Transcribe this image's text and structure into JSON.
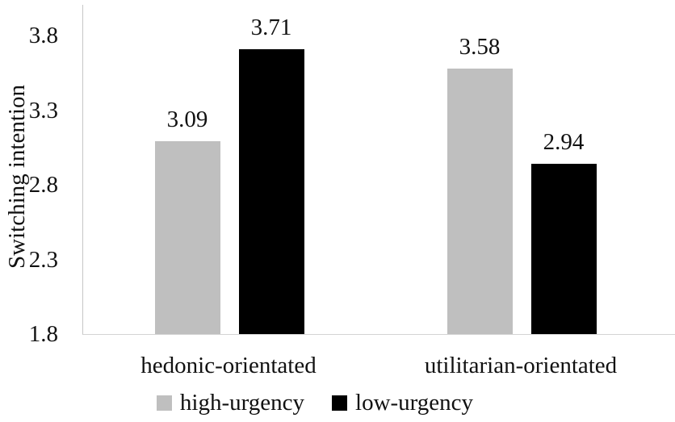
{
  "chart_data": {
    "type": "bar",
    "title": "",
    "xlabel": "",
    "ylabel": "Switching intention",
    "categories": [
      "hedonic-orientated",
      "utilitarian-orientated"
    ],
    "series": [
      {
        "name": "high-urgency",
        "color": "#bfbfbf",
        "values": [
          3.09,
          3.58
        ]
      },
      {
        "name": "low-urgency",
        "color": "#000000",
        "values": [
          3.71,
          2.94
        ]
      }
    ],
    "value_labels": [
      [
        "3.09",
        "3.58"
      ],
      [
        "3.71",
        "2.94"
      ]
    ],
    "ylim": [
      1.8,
      4.0
    ],
    "yticks": [
      "3.8",
      "3.3",
      "2.8",
      "2.3",
      "1.8"
    ],
    "ytick_values": [
      3.8,
      3.3,
      2.8,
      2.3,
      1.8
    ],
    "grid": false,
    "legend_position": "bottom"
  },
  "colors": {
    "background": "#ffffff",
    "axis_line": "#c7c7c7",
    "text": "#111111",
    "bar_gray": "#bfbfbf",
    "bar_black": "#000000"
  }
}
